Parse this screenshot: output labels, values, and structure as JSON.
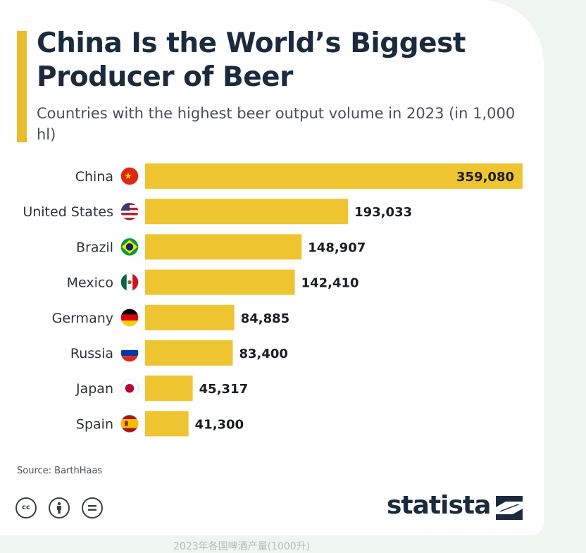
{
  "title": "China Is the World’s Biggest Producer of Beer",
  "subtitle": "Countries with the highest beer output volume in 2023 (in 1,000 hl)",
  "source": "Source: BarthHaas",
  "brand": "statista",
  "bottom_caption": "2023年各国啤酒产量(1000升)",
  "colors": {
    "bar": "#efc431",
    "accent": "#e8bd2c",
    "title": "#1b2a3d",
    "label": "#2e3238"
  },
  "license_icons": [
    "cc-icon",
    "attribution-icon",
    "no-derivatives-icon"
  ],
  "chart_data": {
    "type": "bar",
    "orientation": "horizontal",
    "title": "China Is the World’s Biggest Producer of Beer",
    "subtitle": "Countries with the highest beer output volume in 2023 (in 1,000 hl)",
    "xlabel": "",
    "ylabel": "",
    "xlim": [
      0,
      359080
    ],
    "grid": false,
    "categories": [
      "China",
      "United States",
      "Brazil",
      "Mexico",
      "Germany",
      "Russia",
      "Japan",
      "Spain"
    ],
    "flags": [
      "china-flag-icon",
      "usa-flag-icon",
      "brazil-flag-icon",
      "mexico-flag-icon",
      "germany-flag-icon",
      "russia-flag-icon",
      "japan-flag-icon",
      "spain-flag-icon"
    ],
    "values": [
      359080,
      193033,
      148907,
      142410,
      84885,
      83400,
      45317,
      41300
    ],
    "value_labels": [
      "359,080",
      "193,033",
      "148,907",
      "142,410",
      "84,885",
      "83,400",
      "45,317",
      "41,300"
    ]
  }
}
